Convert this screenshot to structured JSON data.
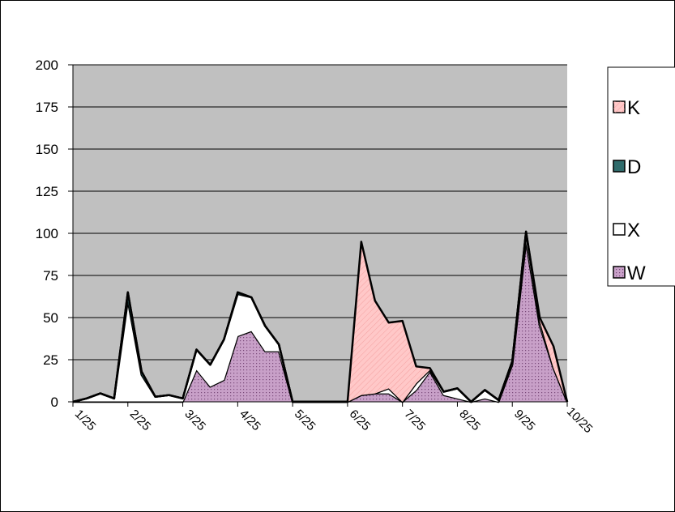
{
  "chart_data": {
    "type": "stacked_area",
    "categories": [
      "1/25",
      null,
      null,
      null,
      "2/25",
      null,
      null,
      null,
      "3/25",
      null,
      null,
      null,
      "4/25",
      null,
      null,
      null,
      "5/25",
      null,
      null,
      null,
      "6/25",
      null,
      null,
      null,
      "7/25",
      null,
      null,
      null,
      "8/25",
      null,
      null,
      null,
      "9/25",
      null,
      null,
      null,
      "10/25"
    ],
    "series": [
      {
        "name": "K",
        "color": "#ffc8c8",
        "values": [
          0,
          0,
          0,
          0,
          0,
          0,
          0,
          0,
          0,
          0,
          0,
          0,
          0,
          0,
          0,
          0,
          0,
          0,
          0,
          0,
          0,
          91,
          55,
          39,
          48,
          10,
          1,
          0,
          0,
          0,
          0,
          0,
          0,
          0,
          2,
          13,
          0
        ]
      },
      {
        "name": "D",
        "color": "#2f6b6b",
        "values": [
          0,
          0,
          0,
          0,
          5,
          2,
          0,
          0,
          0,
          0,
          0,
          0,
          1,
          0,
          0,
          0,
          0,
          0,
          0,
          0,
          0,
          0,
          0,
          0,
          0,
          0,
          0,
          0,
          0,
          0,
          0,
          0,
          0,
          1,
          0,
          0,
          0
        ]
      },
      {
        "name": "X",
        "color": "#ffffff",
        "values": [
          0,
          2,
          5,
          2,
          60,
          16,
          3,
          4,
          2,
          12,
          13,
          24,
          25,
          20,
          15,
          4,
          0,
          0,
          0,
          0,
          0,
          0,
          0,
          3,
          0,
          4,
          1,
          2,
          6,
          0,
          5,
          1,
          2,
          5,
          3,
          0,
          0
        ]
      },
      {
        "name": "W",
        "color": "#c8a0c8",
        "values": [
          0,
          0,
          0,
          0,
          0,
          0,
          0,
          0,
          0,
          19,
          9,
          13,
          39,
          42,
          30,
          30,
          0,
          0,
          0,
          0,
          0,
          4,
          5,
          5,
          0,
          7,
          18,
          4,
          2,
          0,
          2,
          0,
          22,
          95,
          45,
          20,
          0
        ]
      }
    ],
    "ylim": [
      0,
      200
    ],
    "yticks": [
      0,
      25,
      50,
      75,
      100,
      125,
      150,
      175,
      200
    ],
    "grid": true
  }
}
